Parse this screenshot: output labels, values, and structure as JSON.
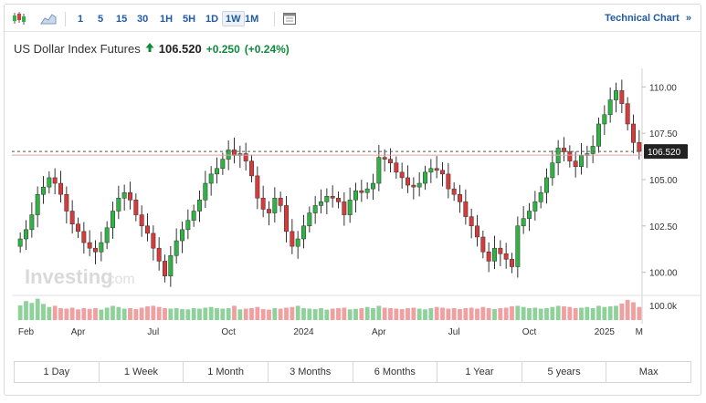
{
  "toolbar": {
    "chart_types": [
      {
        "icon": "candlestick-chart-icon"
      },
      {
        "icon": "area-chart-icon"
      }
    ],
    "timeframes": [
      {
        "label": "1",
        "active": false
      },
      {
        "label": "5",
        "active": false
      },
      {
        "label": "15",
        "active": false
      },
      {
        "label": "30",
        "active": false
      },
      {
        "label": "1H",
        "active": false
      },
      {
        "label": "5H",
        "active": false
      },
      {
        "label": "1D",
        "active": false
      },
      {
        "label": "1W",
        "active": true
      },
      {
        "label": "1M",
        "active": false
      }
    ],
    "calendar_icon": "calendar-icon",
    "technical_chart_label": "Technical Chart",
    "technical_chart_arrow": "»"
  },
  "instrument": {
    "name": "US Dollar Index Futures",
    "trend_icon": "up-arrow-icon",
    "price": "106.520",
    "change": "+0.250",
    "change_pct": "(+0.24%)"
  },
  "watermark": {
    "brand": "Investing",
    "suffix": ".com"
  },
  "colors": {
    "up": "#2fb344",
    "down": "#d73a3a",
    "up_volume": "#8fd19a",
    "down_volume": "#f0a0a0",
    "link": "#1f5aa6",
    "price_label_bg": "#222222"
  },
  "chart_data": {
    "type": "candlestick",
    "interval": "1W",
    "y_axis": {
      "ticks": [
        "110.00",
        "107.50",
        "105.00",
        "102.50",
        "100.00"
      ],
      "range": [
        98.8,
        111.0
      ]
    },
    "x_axis": {
      "ticks": [
        {
          "label": "Feb",
          "index": 1
        },
        {
          "label": "Apr",
          "index": 10
        },
        {
          "label": "Jul",
          "index": 23
        },
        {
          "label": "Oct",
          "index": 36
        },
        {
          "label": "2024",
          "index": 49
        },
        {
          "label": "Apr",
          "index": 62
        },
        {
          "label": "Jul",
          "index": 75
        },
        {
          "label": "Oct",
          "index": 88
        },
        {
          "label": "2025",
          "index": 101
        },
        {
          "label": "M",
          "index": 107
        }
      ]
    },
    "last_price": 106.52,
    "last_price_label": "106.520",
    "reference_line": 106.52,
    "volume_axis_label": "100.0k",
    "closes": [
      101.8,
      102.3,
      103.1,
      104.2,
      104.6,
      105.1,
      104.8,
      104.2,
      103.3,
      102.6,
      102.2,
      101.6,
      101.3,
      101.1,
      101.6,
      102.4,
      103.3,
      104.0,
      104.3,
      103.9,
      103.1,
      102.5,
      102.1,
      101.3,
      100.6,
      99.8,
      100.9,
      101.7,
      102.3,
      102.8,
      103.3,
      103.9,
      104.8,
      105.3,
      105.6,
      106.1,
      106.6,
      106.3,
      106.4,
      106.0,
      105.2,
      104.0,
      103.4,
      103.2,
      104.0,
      103.6,
      102.2,
      101.4,
      101.8,
      102.5,
      103.2,
      103.6,
      103.8,
      104.1,
      104.0,
      103.8,
      103.1,
      103.9,
      104.4,
      104.3,
      104.5,
      104.8,
      106.2,
      106.1,
      105.9,
      105.4,
      105.1,
      104.7,
      104.6,
      104.8,
      105.4,
      105.6,
      105.5,
      105.3,
      104.5,
      104.2,
      103.8,
      103.0,
      102.5,
      101.9,
      101.1,
      100.6,
      101.3,
      101.0,
      100.7,
      100.3,
      102.5,
      102.9,
      103.3,
      103.8,
      104.3,
      105.1,
      105.9,
      106.7,
      106.5,
      106.0,
      105.7,
      106.3,
      106.4,
      106.8,
      108.0,
      108.5,
      109.3,
      109.8,
      109.1,
      108.0,
      107.0,
      106.52
    ],
    "volumes": [
      0.62,
      0.8,
      0.72,
      0.9,
      0.68,
      0.55,
      0.6,
      0.5,
      0.48,
      0.52,
      0.45,
      0.5,
      0.47,
      0.5,
      0.44,
      0.52,
      0.6,
      0.55,
      0.48,
      0.5,
      0.46,
      0.52,
      0.58,
      0.6,
      0.55,
      0.5,
      0.48,
      0.5,
      0.46,
      0.45,
      0.5,
      0.48,
      0.52,
      0.55,
      0.5,
      0.48,
      0.5,
      0.6,
      0.45,
      0.48,
      0.5,
      0.55,
      0.46,
      0.44,
      0.5,
      0.48,
      0.52,
      0.55,
      0.6,
      0.5,
      0.48,
      0.46,
      0.5,
      0.44,
      0.48,
      0.5,
      0.52,
      0.45,
      0.47,
      0.5,
      0.55,
      0.5,
      0.6,
      0.52,
      0.5,
      0.48,
      0.46,
      0.5,
      0.52,
      0.48,
      0.45,
      0.5,
      0.55,
      0.52,
      0.48,
      0.5,
      0.46,
      0.5,
      0.52,
      0.48,
      0.55,
      0.5,
      0.46,
      0.5,
      0.52,
      0.58,
      0.6,
      0.55,
      0.5,
      0.52,
      0.48,
      0.5,
      0.55,
      0.6,
      0.58,
      0.55,
      0.5,
      0.52,
      0.55,
      0.5,
      0.6,
      0.55,
      0.58,
      0.6,
      0.7,
      0.85,
      0.75,
      0.55
    ]
  },
  "ranges": [
    {
      "label": "1 Day"
    },
    {
      "label": "1 Week"
    },
    {
      "label": "1 Month"
    },
    {
      "label": "3 Months"
    },
    {
      "label": "6 Months"
    },
    {
      "label": "1 Year"
    },
    {
      "label": "5 years"
    },
    {
      "label": "Max"
    }
  ]
}
